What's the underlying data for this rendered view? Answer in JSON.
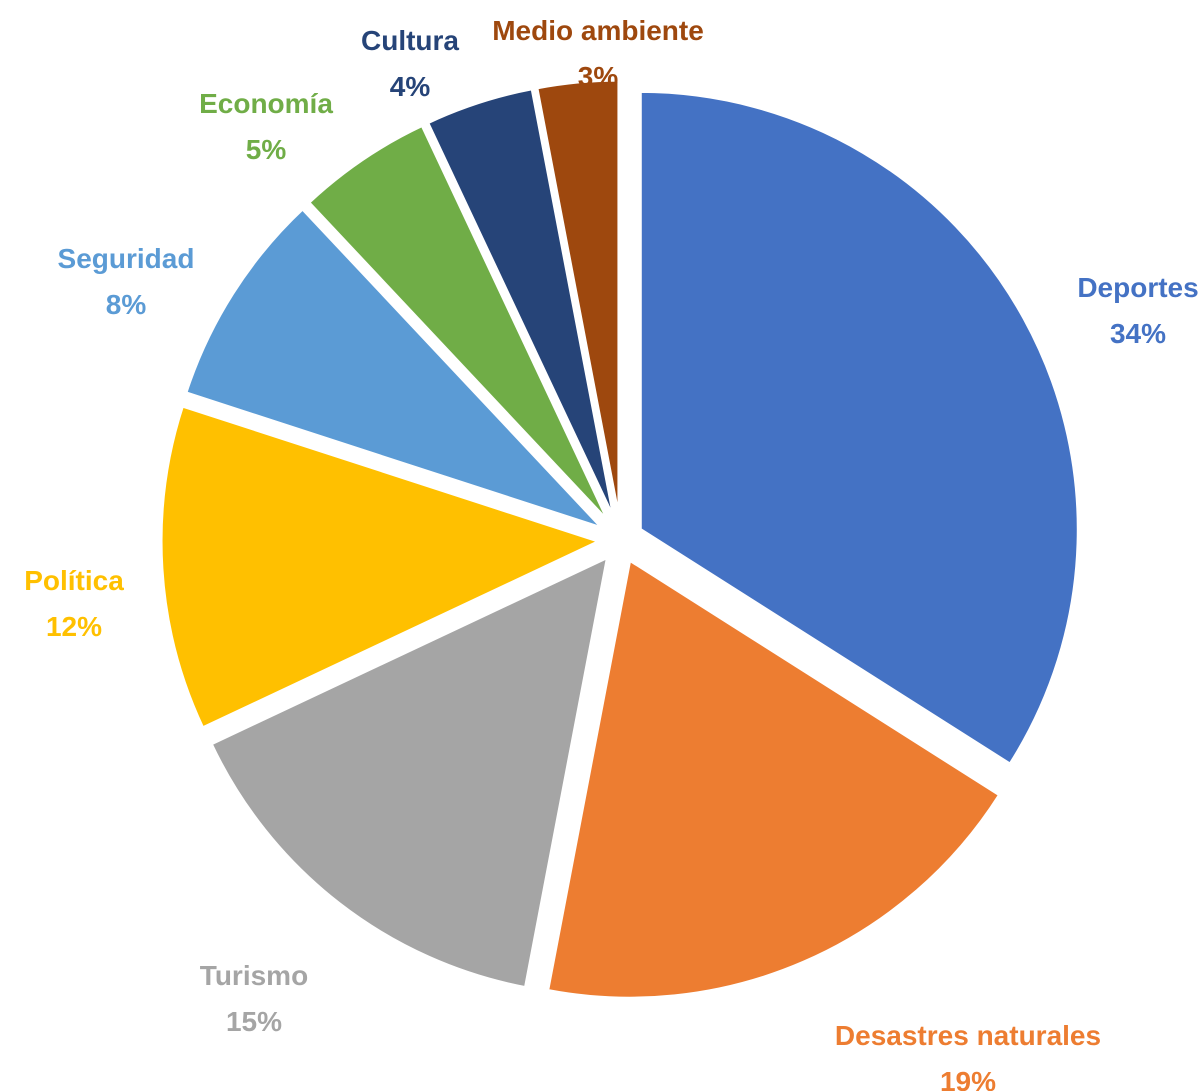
{
  "chart_data": {
    "type": "pie",
    "title": "",
    "start_angle_deg": 0,
    "direction": "clockwise",
    "exploded": true,
    "slices": [
      {
        "label": "Deportes",
        "percent_label": "34%",
        "value": 34,
        "color": "#4472C4"
      },
      {
        "label": "Desastres naturales",
        "percent_label": "19%",
        "value": 19,
        "color": "#ED7D31"
      },
      {
        "label": "Turismo",
        "percent_label": "15%",
        "value": 15,
        "color": "#A5A5A5"
      },
      {
        "label": "Política",
        "percent_label": "12%",
        "value": 12,
        "color": "#FFC000"
      },
      {
        "label": "Seguridad",
        "percent_label": "8%",
        "value": 8,
        "color": "#5B9BD5"
      },
      {
        "label": "Economía",
        "percent_label": "5%",
        "value": 5,
        "color": "#70AD47"
      },
      {
        "label": "Cultura",
        "percent_label": "4%",
        "value": 4,
        "color": "#264478"
      },
      {
        "label": "Medio ambiente",
        "percent_label": "3%",
        "value": 3,
        "color": "#9E480E"
      }
    ]
  }
}
